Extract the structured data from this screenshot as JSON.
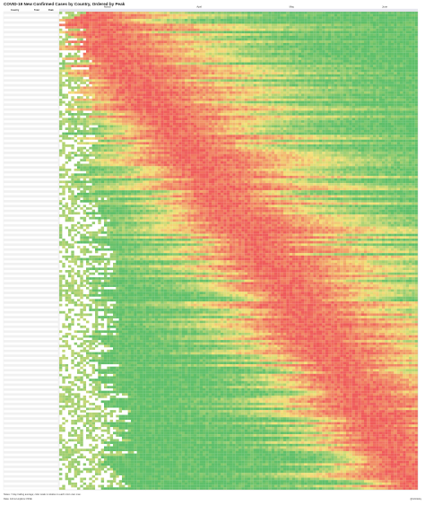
{
  "title": "COVID-19 New Confirmed Cases by Country, Ordered by Peak",
  "notes": {
    "line1": "Notes: 7-day trailing average; color scale is relative to each row's own max.",
    "line2": "Data: Johns Hopkins CSSE"
  },
  "credit": "@mlinksky",
  "chart_data": {
    "type": "heatmap",
    "title": "COVID-19 New Confirmed Cases by Country, Ordered by Peak",
    "column_headers": [
      "Country",
      "Total",
      "Peak"
    ],
    "month_labels": [
      "March",
      "April",
      "May",
      "June"
    ],
    "color_scale": {
      "low": "#5fbf6a",
      "mid": "#f3e27a",
      "high": "#ef5b5b"
    },
    "num_days": 120,
    "num_rows": 198,
    "peak_day_first": 6,
    "peak_day_last": 118,
    "value_encoding": "row-normalized intensity, 0 = lowest (green) to 1 = row peak (red)"
  }
}
